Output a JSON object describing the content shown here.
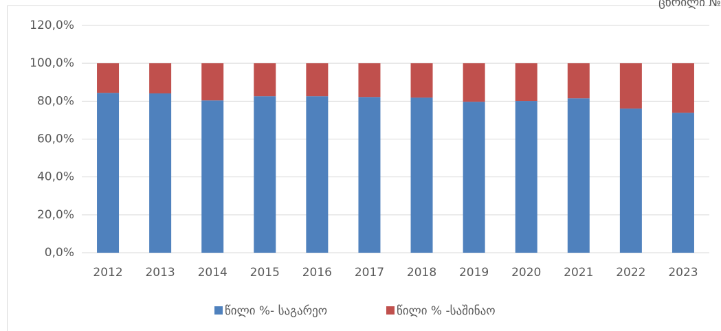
{
  "chart_data": {
    "type": "stacked_bar",
    "annotation": "ცხრილი №",
    "categories": [
      "2012",
      "2013",
      "2014",
      "2015",
      "2016",
      "2017",
      "2018",
      "2019",
      "2020",
      "2021",
      "2022",
      "2023"
    ],
    "series": [
      {
        "name": "წილი %- საგარეო",
        "color": "#4f81bd",
        "values": [
          84.4,
          84.1,
          80.4,
          82.6,
          82.6,
          82.2,
          81.9,
          79.7,
          80.1,
          81.5,
          76.1,
          73.9
        ]
      },
      {
        "name": "წილი % -საშინაო",
        "color": "#c0504d",
        "values": [
          15.6,
          15.9,
          19.6,
          17.4,
          17.4,
          17.8,
          18.1,
          20.3,
          19.9,
          18.5,
          23.9,
          26.1
        ]
      }
    ],
    "ylim": [
      0,
      120
    ],
    "yticks": [
      {
        "value": 0,
        "label": "0,0%"
      },
      {
        "value": 20,
        "label": "20,0%"
      },
      {
        "value": 40,
        "label": "40,0%"
      },
      {
        "value": 60,
        "label": "60,0%"
      },
      {
        "value": 80,
        "label": "80,0%"
      },
      {
        "value": 100,
        "label": "100,0%"
      },
      {
        "value": 120,
        "label": "120,0%"
      }
    ],
    "grid": true,
    "legend": "bottom"
  }
}
